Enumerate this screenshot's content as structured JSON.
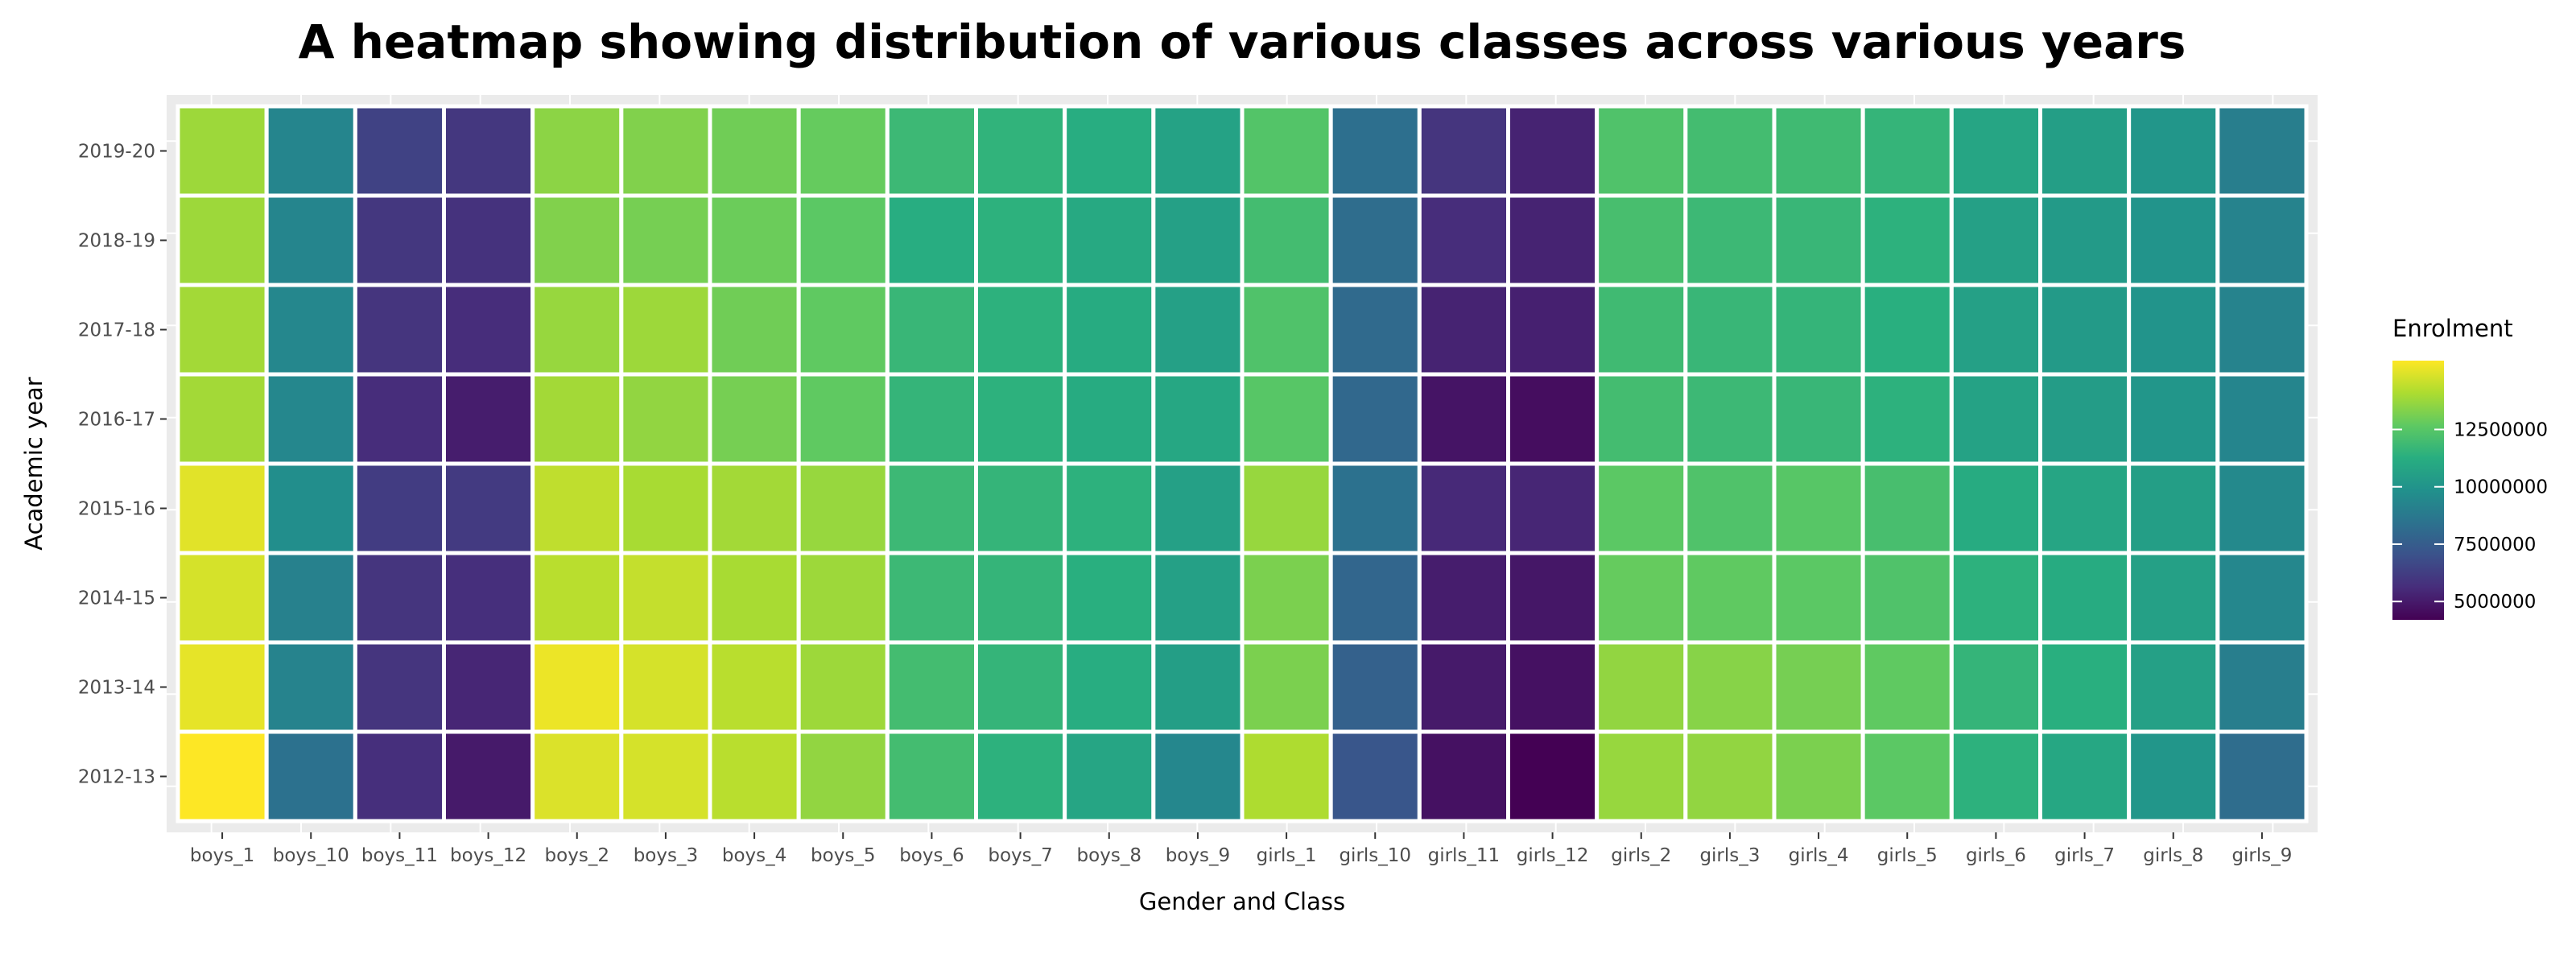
{
  "chart_data": {
    "type": "heatmap",
    "title": "A heatmap showing distribution of various classes across various years",
    "xlabel": "Gender and Class",
    "ylabel": "Academic year",
    "x_categories": [
      "boys_1",
      "boys_10",
      "boys_11",
      "boys_12",
      "boys_2",
      "boys_3",
      "boys_4",
      "boys_5",
      "boys_6",
      "boys_7",
      "boys_8",
      "boys_9",
      "girls_1",
      "girls_10",
      "girls_11",
      "girls_12",
      "girls_2",
      "girls_3",
      "girls_4",
      "girls_5",
      "girls_6",
      "girls_7",
      "girls_8",
      "girls_9"
    ],
    "y_categories": [
      "2019-20",
      "2018-19",
      "2017-18",
      "2016-17",
      "2015-16",
      "2014-15",
      "2013-14",
      "2012-13"
    ],
    "values": [
      [
        13800000,
        9300000,
        6400000,
        6000000,
        13500000,
        13300000,
        13000000,
        12800000,
        11800000,
        11500000,
        11200000,
        10700000,
        12400000,
        8300000,
        5900000,
        5300000,
        12300000,
        12000000,
        11900000,
        11600000,
        10800000,
        10500000,
        10100000,
        9000000
      ],
      [
        13800000,
        9300000,
        6000000,
        5800000,
        13300000,
        13100000,
        12900000,
        12600000,
        11200000,
        11400000,
        11000000,
        10600000,
        12000000,
        8200000,
        5600000,
        5300000,
        12100000,
        11800000,
        11700000,
        11400000,
        10600000,
        10300000,
        10000000,
        9200000
      ],
      [
        13900000,
        9400000,
        5900000,
        5600000,
        13700000,
        13800000,
        13000000,
        12700000,
        11700000,
        11400000,
        11100000,
        10600000,
        12300000,
        8100000,
        5300000,
        5200000,
        11900000,
        11700000,
        11600000,
        11300000,
        10600000,
        10300000,
        10000000,
        9200000
      ],
      [
        13900000,
        9400000,
        5600000,
        5100000,
        13900000,
        13600000,
        13100000,
        12700000,
        11600000,
        11400000,
        11100000,
        10900000,
        12500000,
        8000000,
        4800000,
        4600000,
        12000000,
        11800000,
        11700000,
        11400000,
        10700000,
        10400000,
        10100000,
        9300000
      ],
      [
        15000000,
        9700000,
        6200000,
        6100000,
        14400000,
        14000000,
        13900000,
        13700000,
        11800000,
        11600000,
        11400000,
        10600000,
        13700000,
        8400000,
        5500000,
        5400000,
        12600000,
        12300000,
        12500000,
        12100000,
        11100000,
        10800000,
        10500000,
        9500000
      ],
      [
        14800000,
        9100000,
        5900000,
        5700000,
        14300000,
        14500000,
        14000000,
        13800000,
        11800000,
        11600000,
        11300000,
        10600000,
        13200000,
        7900000,
        5100000,
        4900000,
        12800000,
        12700000,
        12600000,
        12300000,
        11400000,
        11100000,
        10600000,
        9400000
      ],
      [
        15100000,
        9200000,
        5900000,
        5400000,
        15200000,
        14800000,
        14300000,
        13800000,
        12000000,
        11600000,
        11200000,
        10500000,
        13200000,
        7700000,
        5000000,
        4700000,
        13600000,
        13400000,
        13100000,
        12700000,
        11600000,
        11300000,
        10600000,
        9000000
      ],
      [
        15500000,
        8400000,
        5700000,
        5000000,
        14900000,
        14800000,
        14300000,
        13600000,
        12000000,
        11400000,
        10800000,
        9400000,
        14100000,
        7200000,
        4700000,
        4200000,
        13700000,
        13600000,
        13200000,
        12600000,
        11400000,
        10900000,
        10100000,
        8200000
      ]
    ],
    "color_scale": "viridis",
    "range": [
      4200000,
      15500000
    ],
    "legend": {
      "title": "Enrolment",
      "position": "right",
      "ticks": [
        5000000,
        7500000,
        10000000,
        12500000
      ],
      "tick_labels": [
        "5000000",
        "7500000",
        "10000000",
        "12500000"
      ]
    }
  }
}
